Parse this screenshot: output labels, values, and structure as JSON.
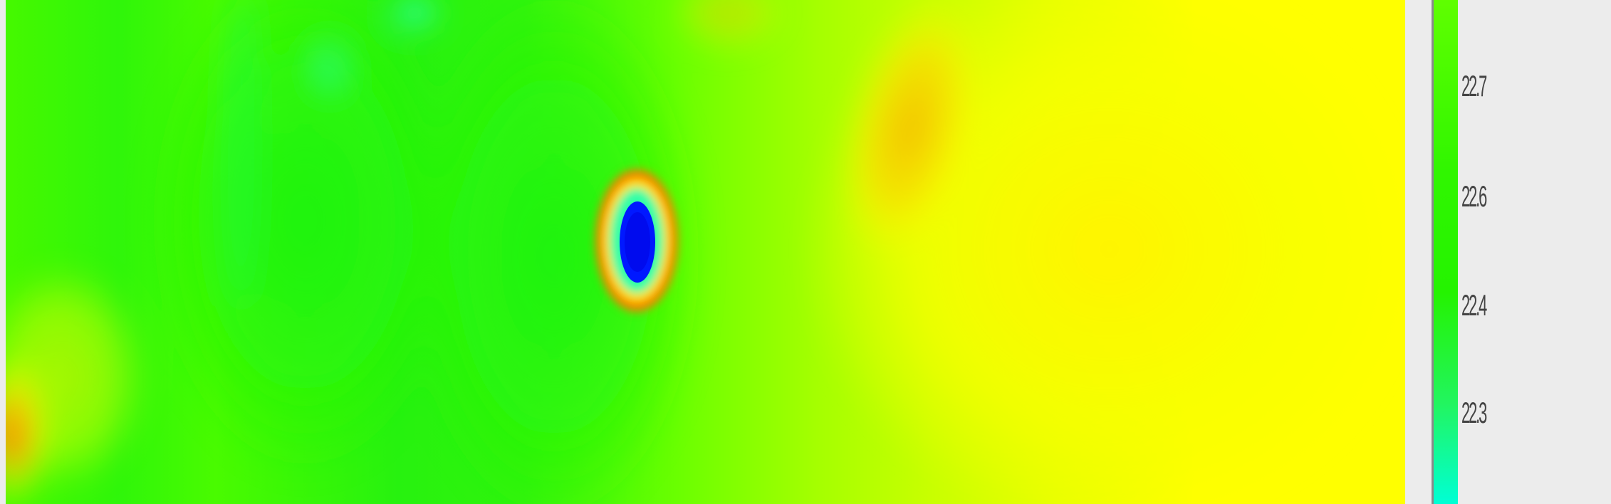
{
  "colorbar": {
    "ticks": [
      "22.7",
      "22.6",
      "22.4",
      "22.3"
    ]
  },
  "colors": {
    "bright_green": "#55ff00",
    "lime": "#a8ff00",
    "yellow": "#ffff00",
    "orange": "#ffaa00",
    "red": "#ff3300",
    "cyan": "#00ffcc",
    "blue": "#001dff"
  }
}
